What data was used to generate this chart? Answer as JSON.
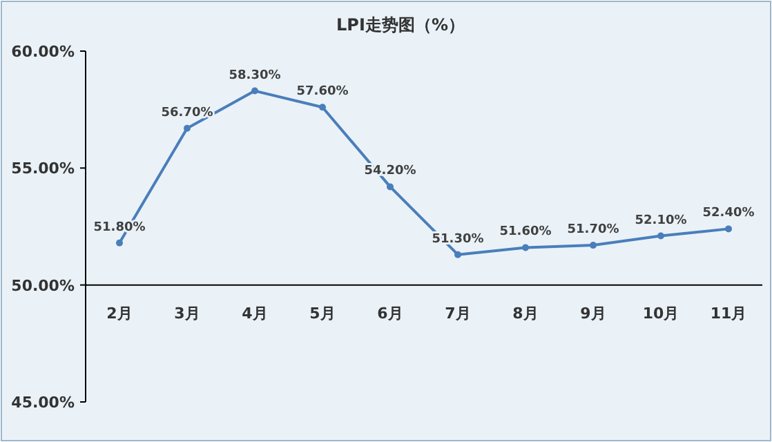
{
  "chart_data": {
    "type": "line",
    "title": "LPI走势图（%）",
    "categories": [
      "2月",
      "3月",
      "4月",
      "5月",
      "6月",
      "7月",
      "8月",
      "9月",
      "10月",
      "11月"
    ],
    "values": [
      51.8,
      56.7,
      58.3,
      57.6,
      54.2,
      51.3,
      51.6,
      51.7,
      52.1,
      52.4
    ],
    "value_labels": [
      "51.80%",
      "56.70%",
      "58.30%",
      "57.60%",
      "54.20%",
      "51.30%",
      "51.60%",
      "51.70%",
      "52.10%",
      "52.40%"
    ],
    "color": "#4a7ebb",
    "marker": "circle",
    "line_style": "solid",
    "grid": false,
    "ylim": [
      45,
      60
    ],
    "yticks": [
      {
        "value": 45,
        "label": "45.00%"
      },
      {
        "value": 50,
        "label": "50.00%"
      },
      {
        "value": 55,
        "label": "55.00%"
      },
      {
        "value": 60,
        "label": "60.00%"
      }
    ]
  }
}
